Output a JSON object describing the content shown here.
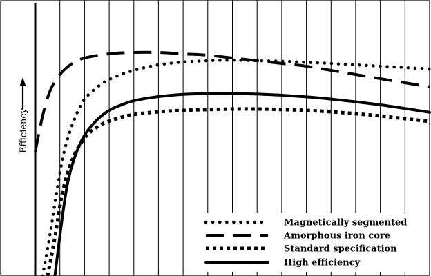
{
  "chart_data": {
    "type": "line",
    "ylabel": "Efficiency",
    "xlim": [
      0,
      16
    ],
    "ylim": [
      0,
      100
    ],
    "grid": {
      "vertical": true,
      "horizontal": false,
      "vertical_lines": 15
    },
    "legend_position": "bottom-right",
    "series": [
      {
        "name": "Magnetically segmented",
        "style": "dotted",
        "color": "#000000",
        "x": [
          0.3,
          0.6,
          0.9,
          1.2,
          1.6,
          2,
          2.6,
          3.2,
          4,
          5,
          6,
          7,
          8,
          9,
          10,
          11,
          12,
          13,
          14,
          15,
          16
        ],
        "y": [
          0,
          15,
          32,
          46,
          57,
          64,
          69,
          72,
          74.5,
          76.5,
          77.5,
          78,
          78.2,
          78,
          77.8,
          77.4,
          77,
          76.5,
          76,
          75.5,
          75
        ]
      },
      {
        "name": "Amorphous iron core",
        "style": "long-dashed",
        "color": "#000000",
        "x": [
          0,
          0.3,
          0.6,
          1,
          1.5,
          2,
          3,
          4,
          5,
          6,
          7,
          8,
          9,
          10,
          11,
          12,
          13,
          14,
          15,
          16
        ],
        "y": [
          45,
          58,
          67,
          73,
          77,
          79,
          80.5,
          81,
          81,
          80.5,
          80,
          79,
          78,
          77,
          76,
          74.5,
          73,
          71.5,
          70,
          68.5
        ]
      },
      {
        "name": "Standard specification",
        "style": "square-dotted",
        "color": "#000000",
        "x": [
          0.5,
          0.8,
          1.1,
          1.5,
          2,
          2.6,
          3.3,
          4,
          5,
          6,
          7,
          8,
          9,
          10,
          11,
          12,
          13,
          14,
          15,
          16
        ],
        "y": [
          0,
          14,
          30,
          42,
          50,
          54.5,
          57,
          58.5,
          59.5,
          60,
          60.3,
          60.5,
          60.5,
          60.3,
          60,
          59.5,
          58.8,
          58,
          57,
          56
        ]
      },
      {
        "name": "High efficiency",
        "style": "solid",
        "color": "#000000",
        "x": [
          0.8,
          1.05,
          1.3,
          1.6,
          2,
          2.5,
          3,
          3.5,
          4,
          5,
          6,
          7,
          8,
          9,
          10,
          11,
          12,
          13,
          14,
          15,
          16
        ],
        "y": [
          0,
          18,
          33,
          43,
          51,
          56.5,
          60,
          62,
          63.5,
          65,
          65.8,
          66.1,
          66.1,
          65.9,
          65.5,
          64.9,
          64.1,
          63.1,
          62,
          60.7,
          59.3
        ]
      }
    ]
  }
}
